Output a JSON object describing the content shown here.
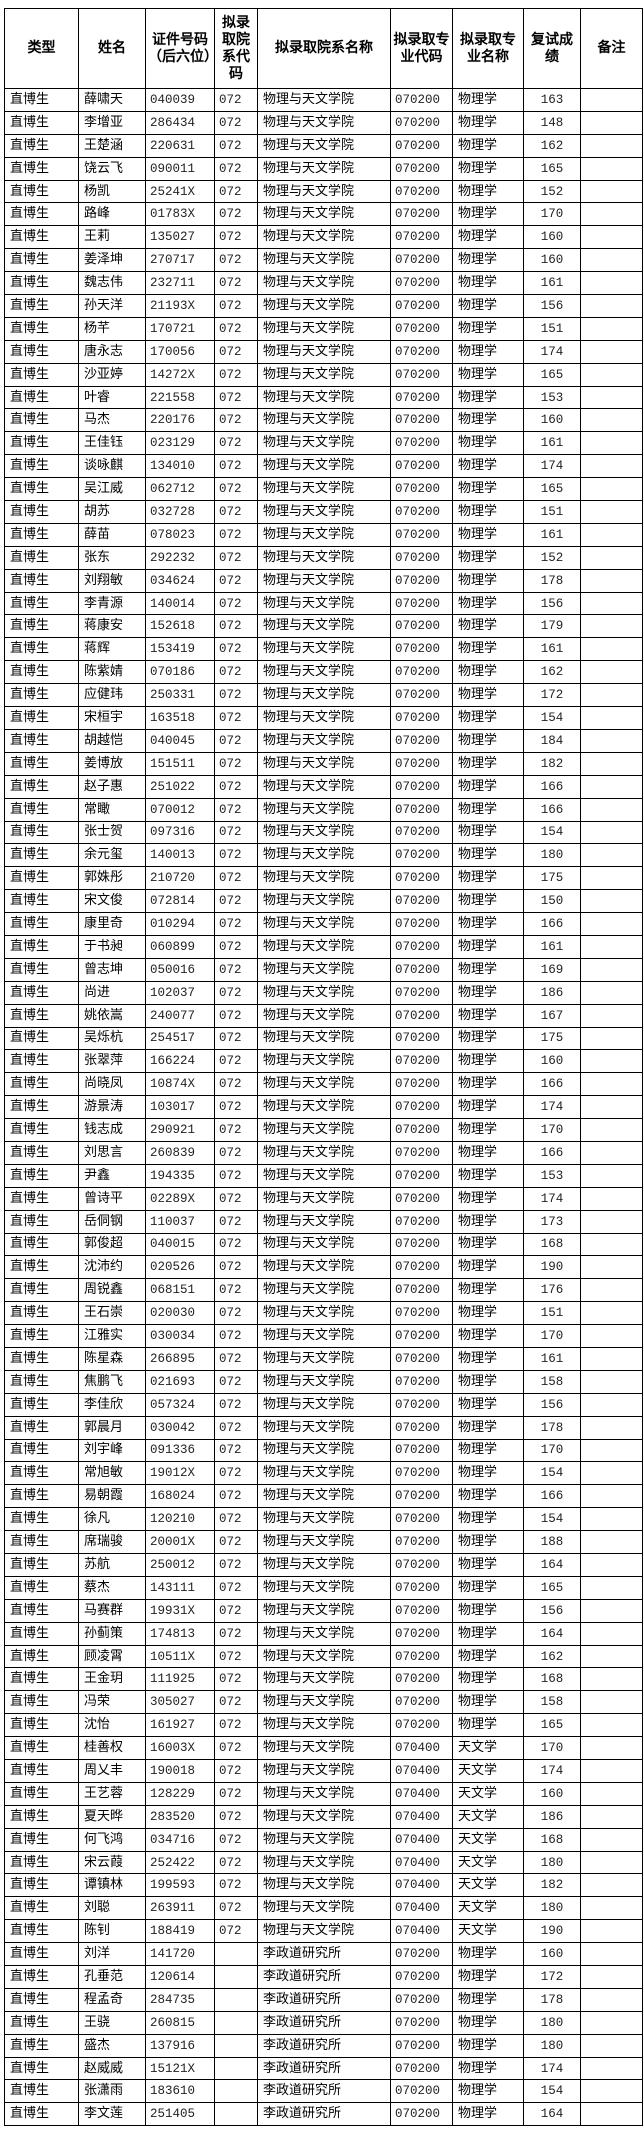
{
  "headers": [
    "类型",
    "姓名",
    "证件号码（后六位）",
    "拟录取院系代码",
    "拟录取院系名称",
    "拟录取专业代码",
    "拟录取专业名称",
    "复试成绩",
    "备注"
  ],
  "columns": [
    "type",
    "name",
    "id_last6",
    "dept_code",
    "dept_name",
    "major_code",
    "major_name",
    "score",
    "remark"
  ],
  "rows": [
    [
      "直博生",
      "薛啸天",
      "040039",
      "072",
      "物理与天文学院",
      "070200",
      "物理学",
      "163",
      ""
    ],
    [
      "直博生",
      "李增亚",
      "286434",
      "072",
      "物理与天文学院",
      "070200",
      "物理学",
      "148",
      ""
    ],
    [
      "直博生",
      "王楚涵",
      "220631",
      "072",
      "物理与天文学院",
      "070200",
      "物理学",
      "162",
      ""
    ],
    [
      "直博生",
      "饶云飞",
      "090011",
      "072",
      "物理与天文学院",
      "070200",
      "物理学",
      "165",
      ""
    ],
    [
      "直博生",
      "杨凯",
      "25241X",
      "072",
      "物理与天文学院",
      "070200",
      "物理学",
      "152",
      ""
    ],
    [
      "直博生",
      "路峰",
      "01783X",
      "072",
      "物理与天文学院",
      "070200",
      "物理学",
      "170",
      ""
    ],
    [
      "直博生",
      "王莉",
      "135027",
      "072",
      "物理与天文学院",
      "070200",
      "物理学",
      "160",
      ""
    ],
    [
      "直博生",
      "姜泽坤",
      "270717",
      "072",
      "物理与天文学院",
      "070200",
      "物理学",
      "160",
      ""
    ],
    [
      "直博生",
      "魏志伟",
      "232711",
      "072",
      "物理与天文学院",
      "070200",
      "物理学",
      "161",
      ""
    ],
    [
      "直博生",
      "孙天洋",
      "21193X",
      "072",
      "物理与天文学院",
      "070200",
      "物理学",
      "156",
      ""
    ],
    [
      "直博生",
      "杨芊",
      "170721",
      "072",
      "物理与天文学院",
      "070200",
      "物理学",
      "151",
      ""
    ],
    [
      "直博生",
      "唐永志",
      "170056",
      "072",
      "物理与天文学院",
      "070200",
      "物理学",
      "174",
      ""
    ],
    [
      "直博生",
      "沙亚婷",
      "14272X",
      "072",
      "物理与天文学院",
      "070200",
      "物理学",
      "165",
      ""
    ],
    [
      "直博生",
      "叶睿",
      "221558",
      "072",
      "物理与天文学院",
      "070200",
      "物理学",
      "153",
      ""
    ],
    [
      "直博生",
      "马杰",
      "220176",
      "072",
      "物理与天文学院",
      "070200",
      "物理学",
      "160",
      ""
    ],
    [
      "直博生",
      "王佳钰",
      "023129",
      "072",
      "物理与天文学院",
      "070200",
      "物理学",
      "161",
      ""
    ],
    [
      "直博生",
      "谈咏麒",
      "134010",
      "072",
      "物理与天文学院",
      "070200",
      "物理学",
      "174",
      ""
    ],
    [
      "直博生",
      "吴江威",
      "062712",
      "072",
      "物理与天文学院",
      "070200",
      "物理学",
      "165",
      ""
    ],
    [
      "直博生",
      "胡苏",
      "032728",
      "072",
      "物理与天文学院",
      "070200",
      "物理学",
      "151",
      ""
    ],
    [
      "直博生",
      "薛苗",
      "078023",
      "072",
      "物理与天文学院",
      "070200",
      "物理学",
      "161",
      ""
    ],
    [
      "直博生",
      "张东",
      "292232",
      "072",
      "物理与天文学院",
      "070200",
      "物理学",
      "152",
      ""
    ],
    [
      "直博生",
      "刘翔敏",
      "034624",
      "072",
      "物理与天文学院",
      "070200",
      "物理学",
      "178",
      ""
    ],
    [
      "直博生",
      "李青源",
      "140014",
      "072",
      "物理与天文学院",
      "070200",
      "物理学",
      "156",
      ""
    ],
    [
      "直博生",
      "蒋康安",
      "152618",
      "072",
      "物理与天文学院",
      "070200",
      "物理学",
      "179",
      ""
    ],
    [
      "直博生",
      "蒋辉",
      "153419",
      "072",
      "物理与天文学院",
      "070200",
      "物理学",
      "161",
      ""
    ],
    [
      "直博生",
      "陈紫婧",
      "070186",
      "072",
      "物理与天文学院",
      "070200",
      "物理学",
      "162",
      ""
    ],
    [
      "直博生",
      "应健玮",
      "250331",
      "072",
      "物理与天文学院",
      "070200",
      "物理学",
      "172",
      ""
    ],
    [
      "直博生",
      "宋桓宇",
      "163518",
      "072",
      "物理与天文学院",
      "070200",
      "物理学",
      "154",
      ""
    ],
    [
      "直博生",
      "胡越恺",
      "040045",
      "072",
      "物理与天文学院",
      "070200",
      "物理学",
      "184",
      ""
    ],
    [
      "直博生",
      "姜博放",
      "151511",
      "072",
      "物理与天文学院",
      "070200",
      "物理学",
      "182",
      ""
    ],
    [
      "直博生",
      "赵子惠",
      "251022",
      "072",
      "物理与天文学院",
      "070200",
      "物理学",
      "166",
      ""
    ],
    [
      "直博生",
      "常瞰",
      "070012",
      "072",
      "物理与天文学院",
      "070200",
      "物理学",
      "166",
      ""
    ],
    [
      "直博生",
      "张士贺",
      "097316",
      "072",
      "物理与天文学院",
      "070200",
      "物理学",
      "154",
      ""
    ],
    [
      "直博生",
      "余元玺",
      "140013",
      "072",
      "物理与天文学院",
      "070200",
      "物理学",
      "180",
      ""
    ],
    [
      "直博生",
      "郭姝彤",
      "210720",
      "072",
      "物理与天文学院",
      "070200",
      "物理学",
      "175",
      ""
    ],
    [
      "直博生",
      "宋文俊",
      "072814",
      "072",
      "物理与天文学院",
      "070200",
      "物理学",
      "150",
      ""
    ],
    [
      "直博生",
      "康里奇",
      "010294",
      "072",
      "物理与天文学院",
      "070200",
      "物理学",
      "166",
      ""
    ],
    [
      "直博生",
      "于书昶",
      "060899",
      "072",
      "物理与天文学院",
      "070200",
      "物理学",
      "161",
      ""
    ],
    [
      "直博生",
      "曾志坤",
      "050016",
      "072",
      "物理与天文学院",
      "070200",
      "物理学",
      "169",
      ""
    ],
    [
      "直博生",
      "尚进",
      "102037",
      "072",
      "物理与天文学院",
      "070200",
      "物理学",
      "186",
      ""
    ],
    [
      "直博生",
      "姚依嵩",
      "240077",
      "072",
      "物理与天文学院",
      "070200",
      "物理学",
      "167",
      ""
    ],
    [
      "直博生",
      "吴烁杭",
      "254517",
      "072",
      "物理与天文学院",
      "070200",
      "物理学",
      "175",
      ""
    ],
    [
      "直博生",
      "张翠萍",
      "166224",
      "072",
      "物理与天文学院",
      "070200",
      "物理学",
      "160",
      ""
    ],
    [
      "直博生",
      "尚晓凤",
      "10874X",
      "072",
      "物理与天文学院",
      "070200",
      "物理学",
      "166",
      ""
    ],
    [
      "直博生",
      "游景涛",
      "103017",
      "072",
      "物理与天文学院",
      "070200",
      "物理学",
      "174",
      ""
    ],
    [
      "直博生",
      "钱志成",
      "290921",
      "072",
      "物理与天文学院",
      "070200",
      "物理学",
      "170",
      ""
    ],
    [
      "直博生",
      "刘思言",
      "260839",
      "072",
      "物理与天文学院",
      "070200",
      "物理学",
      "166",
      ""
    ],
    [
      "直博生",
      "尹鑫",
      "194335",
      "072",
      "物理与天文学院",
      "070200",
      "物理学",
      "153",
      ""
    ],
    [
      "直博生",
      "曾诗平",
      "02289X",
      "072",
      "物理与天文学院",
      "070200",
      "物理学",
      "174",
      ""
    ],
    [
      "直博生",
      "岳侗钢",
      "110037",
      "072",
      "物理与天文学院",
      "070200",
      "物理学",
      "173",
      ""
    ],
    [
      "直博生",
      "郭俊超",
      "040015",
      "072",
      "物理与天文学院",
      "070200",
      "物理学",
      "168",
      ""
    ],
    [
      "直博生",
      "沈沛约",
      "020526",
      "072",
      "物理与天文学院",
      "070200",
      "物理学",
      "190",
      ""
    ],
    [
      "直博生",
      "周锐鑫",
      "068151",
      "072",
      "物理与天文学院",
      "070200",
      "物理学",
      "176",
      ""
    ],
    [
      "直博生",
      "王石崇",
      "020030",
      "072",
      "物理与天文学院",
      "070200",
      "物理学",
      "151",
      ""
    ],
    [
      "直博生",
      "江雅实",
      "030034",
      "072",
      "物理与天文学院",
      "070200",
      "物理学",
      "170",
      ""
    ],
    [
      "直博生",
      "陈星森",
      "266895",
      "072",
      "物理与天文学院",
      "070200",
      "物理学",
      "161",
      ""
    ],
    [
      "直博生",
      "焦鹏飞",
      "021693",
      "072",
      "物理与天文学院",
      "070200",
      "物理学",
      "158",
      ""
    ],
    [
      "直博生",
      "李佳欣",
      "057324",
      "072",
      "物理与天文学院",
      "070200",
      "物理学",
      "156",
      ""
    ],
    [
      "直博生",
      "郭晨月",
      "030042",
      "072",
      "物理与天文学院",
      "070200",
      "物理学",
      "178",
      ""
    ],
    [
      "直博生",
      "刘宇峰",
      "091336",
      "072",
      "物理与天文学院",
      "070200",
      "物理学",
      "170",
      ""
    ],
    [
      "直博生",
      "常旭敏",
      "19012X",
      "072",
      "物理与天文学院",
      "070200",
      "物理学",
      "154",
      ""
    ],
    [
      "直博生",
      "易朝霞",
      "168024",
      "072",
      "物理与天文学院",
      "070200",
      "物理学",
      "166",
      ""
    ],
    [
      "直博生",
      "徐凡",
      "120210",
      "072",
      "物理与天文学院",
      "070200",
      "物理学",
      "154",
      ""
    ],
    [
      "直博生",
      "席瑞骏",
      "20001X",
      "072",
      "物理与天文学院",
      "070200",
      "物理学",
      "188",
      ""
    ],
    [
      "直博生",
      "苏航",
      "250012",
      "072",
      "物理与天文学院",
      "070200",
      "物理学",
      "164",
      ""
    ],
    [
      "直博生",
      "蔡杰",
      "143111",
      "072",
      "物理与天文学院",
      "070200",
      "物理学",
      "165",
      ""
    ],
    [
      "直博生",
      "马赛群",
      "19931X",
      "072",
      "物理与天文学院",
      "070200",
      "物理学",
      "156",
      ""
    ],
    [
      "直博生",
      "孙蓟策",
      "174813",
      "072",
      "物理与天文学院",
      "070200",
      "物理学",
      "164",
      ""
    ],
    [
      "直博生",
      "顾凌霄",
      "10511X",
      "072",
      "物理与天文学院",
      "070200",
      "物理学",
      "162",
      ""
    ],
    [
      "直博生",
      "王金玥",
      "111925",
      "072",
      "物理与天文学院",
      "070200",
      "物理学",
      "168",
      ""
    ],
    [
      "直博生",
      "冯荣",
      "305027",
      "072",
      "物理与天文学院",
      "070200",
      "物理学",
      "158",
      ""
    ],
    [
      "直博生",
      "沈怡",
      "161927",
      "072",
      "物理与天文学院",
      "070200",
      "物理学",
      "165",
      ""
    ],
    [
      "直博生",
      "桂善权",
      "16003X",
      "072",
      "物理与天文学院",
      "070400",
      "天文学",
      "170",
      ""
    ],
    [
      "直博生",
      "周乂丰",
      "190018",
      "072",
      "物理与天文学院",
      "070400",
      "天文学",
      "174",
      ""
    ],
    [
      "直博生",
      "王艺蓉",
      "128229",
      "072",
      "物理与天文学院",
      "070400",
      "天文学",
      "160",
      ""
    ],
    [
      "直博生",
      "夏天晔",
      "283520",
      "072",
      "物理与天文学院",
      "070400",
      "天文学",
      "186",
      ""
    ],
    [
      "直博生",
      "何飞鸿",
      "034716",
      "072",
      "物理与天文学院",
      "070400",
      "天文学",
      "168",
      ""
    ],
    [
      "直博生",
      "宋云葭",
      "252422",
      "072",
      "物理与天文学院",
      "070400",
      "天文学",
      "180",
      ""
    ],
    [
      "直博生",
      "谭镇林",
      "199593",
      "072",
      "物理与天文学院",
      "070400",
      "天文学",
      "182",
      ""
    ],
    [
      "直博生",
      "刘聪",
      "263911",
      "072",
      "物理与天文学院",
      "070400",
      "天文学",
      "180",
      ""
    ],
    [
      "直博生",
      "陈钊",
      "188419",
      "072",
      "物理与天文学院",
      "070400",
      "天文学",
      "190",
      ""
    ],
    [
      "直博生",
      "刘洋",
      "141720",
      "",
      "李政道研究所",
      "070200",
      "物理学",
      "160",
      ""
    ],
    [
      "直博生",
      "孔垂范",
      "120614",
      "",
      "李政道研究所",
      "070200",
      "物理学",
      "172",
      ""
    ],
    [
      "直博生",
      "程孟奇",
      "284735",
      "",
      "李政道研究所",
      "070200",
      "物理学",
      "178",
      ""
    ],
    [
      "直博生",
      "王骁",
      "260815",
      "",
      "李政道研究所",
      "070200",
      "物理学",
      "180",
      ""
    ],
    [
      "直博生",
      "盛杰",
      "137916",
      "",
      "李政道研究所",
      "070200",
      "物理学",
      "180",
      ""
    ],
    [
      "直博生",
      "赵威威",
      "15121X",
      "",
      "李政道研究所",
      "070200",
      "物理学",
      "174",
      ""
    ],
    [
      "直博生",
      "张潇雨",
      "183610",
      "",
      "李政道研究所",
      "070200",
      "物理学",
      "154",
      ""
    ],
    [
      "直博生",
      "李文莲",
      "251405",
      "",
      "李政道研究所",
      "070200",
      "物理学",
      "164",
      ""
    ]
  ]
}
